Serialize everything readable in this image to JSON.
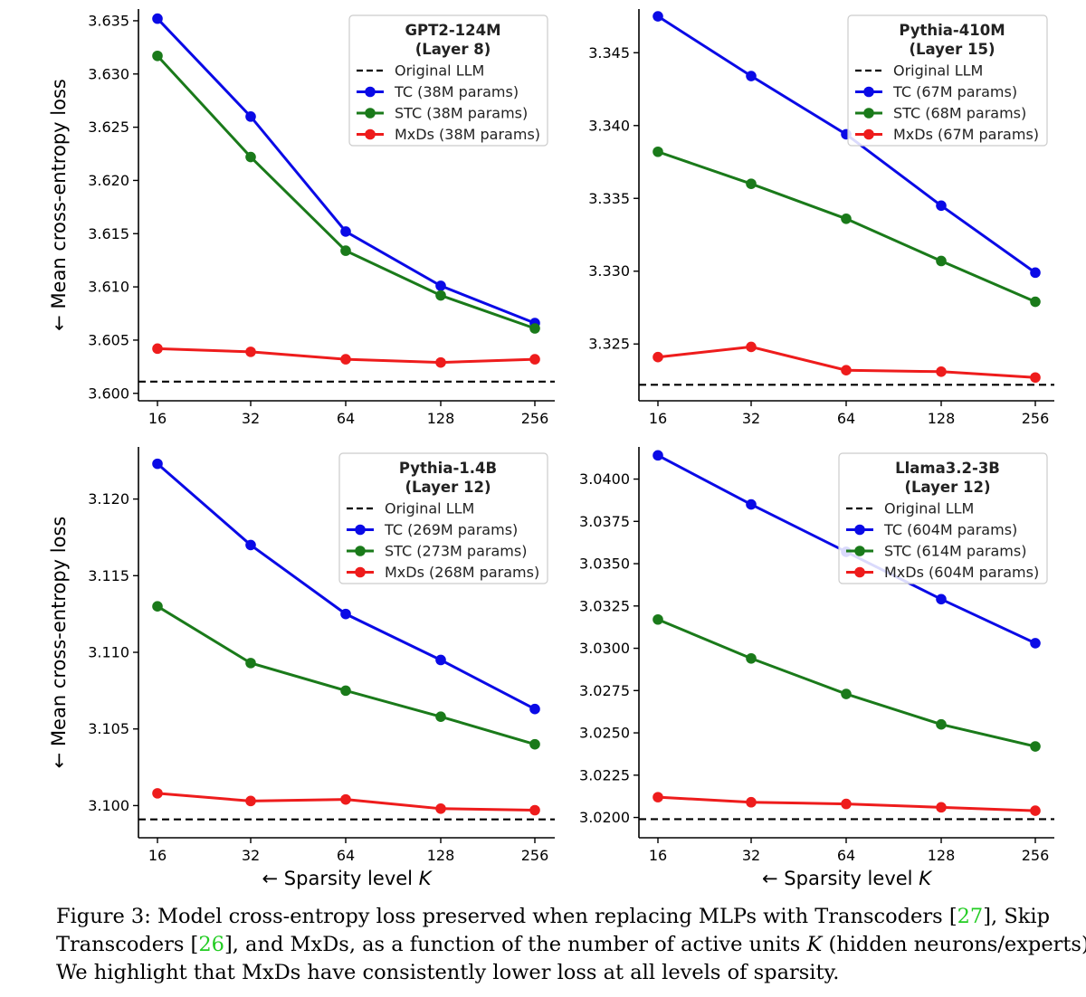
{
  "chart_data": [
    {
      "type": "line",
      "title": "GPT2-124M",
      "subtitle": "(Layer 8)",
      "ylabel": "← Mean cross-entropy loss",
      "xlabel": "",
      "x": [
        16,
        32,
        64,
        128,
        256
      ],
      "xticks": [
        "16",
        "32",
        "64",
        "128",
        "256"
      ],
      "x_scale": "log2",
      "ylim": [
        3.5993,
        3.6361
      ],
      "yticks": [
        3.6,
        3.605,
        3.61,
        3.615,
        3.62,
        3.625,
        3.63,
        3.635
      ],
      "ytick_decimals": 3,
      "legend_position": "top-right",
      "baseline": {
        "name": "Original LLM",
        "value": 3.6011,
        "style": "dashed",
        "color": "#000000"
      },
      "series": [
        {
          "name": "TC (38M params)",
          "color": "#0a0ae6",
          "values": [
            3.6352,
            3.626,
            3.6152,
            3.6101,
            3.6066
          ]
        },
        {
          "name": "STC (38M params)",
          "color": "#1a7a1a",
          "values": [
            3.6317,
            3.6222,
            3.6134,
            3.6092,
            3.6061
          ]
        },
        {
          "name": "MxDs (38M params)",
          "color": "#ee1c1c",
          "values": [
            3.6042,
            3.6039,
            3.6032,
            3.6029,
            3.6032
          ]
        }
      ]
    },
    {
      "type": "line",
      "title": "Pythia-410M",
      "subtitle": "(Layer 15)",
      "ylabel": "",
      "xlabel": "",
      "x": [
        16,
        32,
        64,
        128,
        256
      ],
      "xticks": [
        "16",
        "32",
        "64",
        "128",
        "256"
      ],
      "x_scale": "log2",
      "ylim": [
        3.3211,
        3.348
      ],
      "yticks": [
        3.325,
        3.33,
        3.335,
        3.34,
        3.345
      ],
      "ytick_decimals": 3,
      "legend_position": "top-right",
      "baseline": {
        "name": "Original LLM",
        "value": 3.3222,
        "style": "dashed",
        "color": "#000000"
      },
      "series": [
        {
          "name": "TC (67M params)",
          "color": "#0a0ae6",
          "values": [
            3.3475,
            3.3434,
            3.3394,
            3.3345,
            3.3299
          ]
        },
        {
          "name": "STC (68M params)",
          "color": "#1a7a1a",
          "values": [
            3.3382,
            3.336,
            3.3336,
            3.3307,
            3.3279
          ]
        },
        {
          "name": "MxDs (67M params)",
          "color": "#ee1c1c",
          "values": [
            3.3241,
            3.3248,
            3.3232,
            3.3231,
            3.3227
          ]
        }
      ]
    },
    {
      "type": "line",
      "title": "Pythia-1.4B",
      "subtitle": "(Layer 12)",
      "ylabel": "← Mean cross-entropy loss",
      "xlabel": "← Sparsity level K",
      "x": [
        16,
        32,
        64,
        128,
        256
      ],
      "xticks": [
        "16",
        "32",
        "64",
        "128",
        "256"
      ],
      "x_scale": "log2",
      "ylim": [
        3.0979,
        3.1234
      ],
      "yticks": [
        3.1,
        3.105,
        3.11,
        3.115,
        3.12
      ],
      "ytick_decimals": 3,
      "legend_position": "top-right",
      "baseline": {
        "name": "Original LLM",
        "value": 3.0991,
        "style": "dashed",
        "color": "#000000"
      },
      "series": [
        {
          "name": "TC (269M params)",
          "color": "#0a0ae6",
          "values": [
            3.1223,
            3.117,
            3.1125,
            3.1095,
            3.1063
          ]
        },
        {
          "name": "STC (273M params)",
          "color": "#1a7a1a",
          "values": [
            3.113,
            3.1093,
            3.1075,
            3.1058,
            3.104
          ]
        },
        {
          "name": "MxDs (268M params)",
          "color": "#ee1c1c",
          "values": [
            3.1008,
            3.1003,
            3.1004,
            3.0998,
            3.0997
          ]
        }
      ]
    },
    {
      "type": "line",
      "title": "Llama3.2-3B",
      "subtitle": "(Layer 12)",
      "ylabel": "",
      "xlabel": "← Sparsity level K",
      "x": [
        16,
        32,
        64,
        128,
        256
      ],
      "xticks": [
        "16",
        "32",
        "64",
        "128",
        "256"
      ],
      "x_scale": "log2",
      "ylim": [
        3.0188,
        3.0419
      ],
      "yticks": [
        3.02,
        3.0225,
        3.025,
        3.0275,
        3.03,
        3.0325,
        3.035,
        3.0375,
        3.04
      ],
      "ytick_decimals": 4,
      "legend_position": "top-right",
      "baseline": {
        "name": "Original LLM",
        "value": 3.0199,
        "style": "dashed",
        "color": "#000000"
      },
      "series": [
        {
          "name": "TC (604M params)",
          "color": "#0a0ae6",
          "values": [
            3.0414,
            3.0385,
            3.0357,
            3.0329,
            3.0303
          ]
        },
        {
          "name": "STC (614M params)",
          "color": "#1a7a1a",
          "values": [
            3.0317,
            3.0294,
            3.0273,
            3.0255,
            3.0242
          ]
        },
        {
          "name": "MxDs (604M params)",
          "color": "#ee1c1c",
          "values": [
            3.0212,
            3.0209,
            3.0208,
            3.0206,
            3.0204
          ]
        }
      ]
    }
  ],
  "caption": {
    "line1_a": "Figure 3: Model cross-entropy loss preserved when replacing MLPs with Transcoders [",
    "cite1": "27",
    "line1_b": "], Skip",
    "line2_a": "Transcoders [",
    "cite2": "26",
    "line2_b": "], and MxDs, as a function of the number of active units ",
    "math_k": "K",
    "line2_c": " (hidden neurons/experts).",
    "line3": "We highlight that MxDs have consistently lower loss at all levels of sparsity."
  }
}
